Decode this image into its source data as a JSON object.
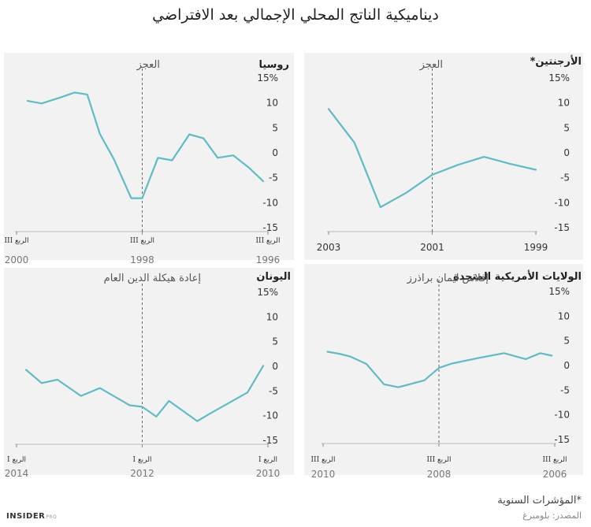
{
  "title": "ديناميكية الناتج المحلي الإجمالي بعد الافتراضي",
  "footer": {
    "note": "*المؤشرات السنوية",
    "source": "المصدر: بلومبرغ",
    "logo_main": "INSIDER",
    "logo_sub": "PRO"
  },
  "colors": {
    "line": "#5fbcc6",
    "panel_bg": "#f2f2f2",
    "event_line": "#666666"
  },
  "chart_data": [
    {
      "type": "line",
      "title": "روسيا",
      "event_label": "العجز",
      "yticks": [
        "15%",
        "10",
        "5",
        "0",
        "-5",
        "-10",
        "-15"
      ],
      "yvalues": [
        15,
        10,
        5,
        0,
        -5,
        -10,
        -15
      ],
      "ylim": [
        -15,
        15
      ],
      "xlim": [
        0,
        16
      ],
      "event_x": 8,
      "xticks": [
        {
          "x": 0,
          "quarter": "III الربع",
          "year": "2000"
        },
        {
          "x": 8,
          "quarter": "III الربع",
          "year": "1998"
        },
        {
          "x": 16,
          "quarter": "III الربع",
          "year": "1996"
        }
      ],
      "series": [
        {
          "x": [
            0.7,
            1.6,
            2.7,
            3.7,
            4.5,
            5.3,
            6.2,
            7.3,
            8.0,
            9.0,
            9.9,
            11.0,
            11.9,
            12.8,
            13.8,
            14.8,
            15.7
          ],
          "values": [
            10.4,
            9.9,
            11.0,
            12.1,
            11.7,
            3.8,
            -1.3,
            -9.1,
            -9.1,
            -1.0,
            -1.5,
            3.7,
            2.9,
            -1.0,
            -0.5,
            -3.0,
            -5.7
          ]
        }
      ]
    },
    {
      "type": "line",
      "title": "الأرجنتين*",
      "event_label": "العجز",
      "yticks": [
        "15%",
        "10",
        "5",
        "0",
        "-5",
        "-10",
        "-15"
      ],
      "yvalues": [
        15,
        10,
        5,
        0,
        -5,
        -10,
        -15
      ],
      "ylim": [
        -15,
        15
      ],
      "xlim": [
        2003,
        1999
      ],
      "event_x": 2001,
      "xticks": [
        {
          "x": 2003,
          "quarter": "",
          "year": "2003"
        },
        {
          "x": 2001,
          "quarter": "",
          "year": "2001"
        },
        {
          "x": 1999,
          "quarter": "",
          "year": "1999"
        }
      ],
      "series": [
        {
          "x": [
            2003,
            2002.5,
            2002,
            2001.5,
            2001,
            2000.5,
            2000,
            1999.5,
            1999
          ],
          "values": [
            8.8,
            2.0,
            -10.9,
            -8.0,
            -4.4,
            -2.4,
            -0.8,
            -2.2,
            -3.4
          ]
        }
      ]
    },
    {
      "type": "line",
      "title": "اليونان",
      "event_label": "إعادة هيكلة الدين العام",
      "yticks": [
        "15%",
        "10",
        "5",
        "0",
        "-5",
        "-10",
        "-15"
      ],
      "yvalues": [
        15,
        10,
        5,
        0,
        -5,
        -10,
        -15
      ],
      "ylim": [
        -15,
        15
      ],
      "xlim": [
        0,
        16
      ],
      "event_x": 8,
      "xticks": [
        {
          "x": 0,
          "quarter": "I الربع",
          "year": "2014"
        },
        {
          "x": 8,
          "quarter": "I الربع",
          "year": "2012"
        },
        {
          "x": 16,
          "quarter": "I الربع",
          "year": "2010"
        }
      ],
      "series": [
        {
          "x": [
            0.6,
            1.6,
            2.6,
            4.1,
            5.3,
            7.2,
            8.0,
            8.9,
            9.7,
            11.5,
            12.3,
            14.7,
            15.7
          ],
          "values": [
            -0.7,
            -3.4,
            -2.7,
            -6.0,
            -4.4,
            -7.9,
            -8.2,
            -10.2,
            -7.0,
            -11.1,
            -9.6,
            -5.3,
            0.1
          ]
        }
      ]
    },
    {
      "type": "line",
      "title": "الولايات الأمريكية المتحدة",
      "event_label": "إفلاس ليمان براذرز",
      "yticks": [
        "15%",
        "10",
        "5",
        "0",
        "-5",
        "-10",
        "-15"
      ],
      "yvalues": [
        15,
        10,
        5,
        0,
        -5,
        -10,
        -15
      ],
      "ylim": [
        -15,
        15
      ],
      "xlim": [
        0,
        16
      ],
      "event_x": 8,
      "xticks": [
        {
          "x": 0,
          "quarter": "III الربع",
          "year": "2010"
        },
        {
          "x": 8,
          "quarter": "III الربع",
          "year": "2008"
        },
        {
          "x": 16,
          "quarter": "III الربع",
          "year": "2006"
        }
      ],
      "series": [
        {
          "x": [
            0.3,
            1.1,
            1.9,
            3.0,
            4.2,
            5.2,
            7.0,
            8.0,
            8.9,
            10.7,
            12.5,
            14.0,
            15.0,
            15.8
          ],
          "values": [
            2.8,
            2.4,
            1.8,
            0.3,
            -3.8,
            -4.4,
            -3.0,
            -0.5,
            0.4,
            1.5,
            2.5,
            1.3,
            2.5,
            2.0
          ]
        }
      ]
    }
  ]
}
